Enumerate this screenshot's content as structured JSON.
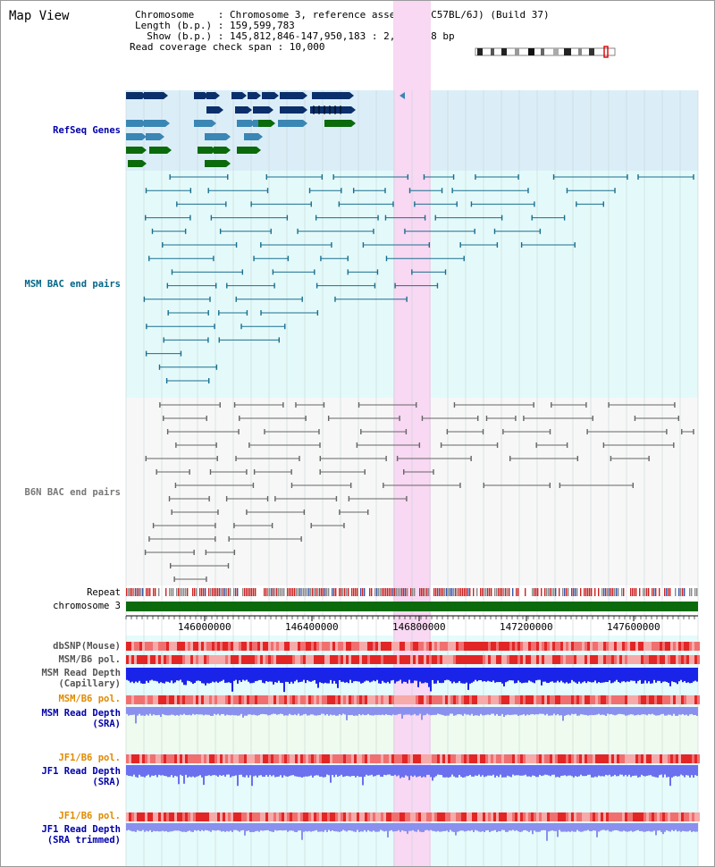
{
  "title": "Map View",
  "info": {
    "chromosome": "Chromosome    : Chromosome 3, reference assembly (C57BL/6J) (Build 37)",
    "length": "Length (b.p.) : 159,599,783",
    "show": "  Show (b.p.) : 145,812,846-147,950,183 : 2,137,338 bp",
    "coverage": "Read coverage check span : 10,000"
  },
  "tracks": {
    "refseq": "RefSeq Genes",
    "msm_bac": "MSM BAC end pairs",
    "b6n_bac": "B6N BAC end pairs",
    "repeat": "Repeat",
    "chromosome": "chromosome 3",
    "dbsnp": "dbSNP(Mouse)",
    "msm_b6_pol_1": "MSM/B6 pol.",
    "msm_depth_cap_1": "MSM Read Depth",
    "msm_depth_cap_2": "(Capillary)",
    "msm_b6_pol_2": "MSM/B6 pol.",
    "msm_depth_sra_1": "MSM Read Depth",
    "msm_depth_sra_2": "(SRA)",
    "jf1_b6_pol_1": "JF1/B6 pol.",
    "jf1_depth_sra_1": "JF1 Read Depth",
    "jf1_depth_sra_2": "(SRA)",
    "jf1_b6_pol_2": "JF1/B6 pol.",
    "jf1_depth_trim_1": "JF1 Read Depth",
    "jf1_depth_trim_2": "(SRA trimmed)"
  },
  "axis_ticks": [
    "146000000",
    "146400000",
    "146800000",
    "147200000",
    "147600000"
  ],
  "colors": {
    "refseq_bg": "#dbeef8",
    "msm_bg": "#e4fafa",
    "b6n_bg": "#f7f7f7",
    "highlight": "#f8d8f2",
    "chromosome": "#0b6a0b",
    "label_blue": "#0000aa",
    "label_teal": "#006688",
    "label_gray": "#777777",
    "label_orange": "#e08a00"
  }
}
